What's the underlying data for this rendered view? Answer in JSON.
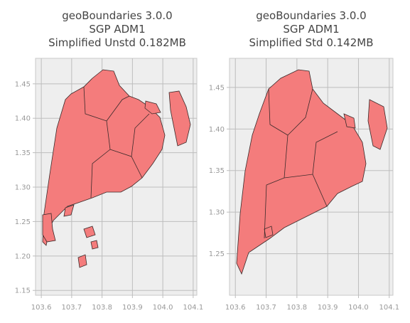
{
  "chart_data": [
    {
      "type": "map",
      "title": [
        "geoBoundaries 3.0.0",
        "SGP ADM1",
        "Simplified Unstd 0.182MB"
      ],
      "xlim": [
        103.581,
        104.112
      ],
      "ylim": [
        1.143,
        1.487
      ],
      "xticks": [
        103.6,
        103.7,
        103.8,
        103.9,
        {
          "value": 104.0,
          "label": "104.0"
        },
        104.1
      ],
      "yticks": [
        1.15,
        {
          "value": 1.2,
          "label": "1.20"
        },
        1.25,
        {
          "value": 1.3,
          "label": "1.30"
        },
        1.35,
        {
          "value": 1.4,
          "label": "1.40"
        },
        1.45
      ],
      "grid": true
    },
    {
      "type": "map",
      "title": [
        "geoBoundaries 3.0.0",
        "SGP ADM1",
        "Simplified Std 0.142MB"
      ],
      "xlim": [
        103.581,
        104.112
      ],
      "ylim": [
        1.2,
        1.485
      ],
      "xticks": [
        103.6,
        103.7,
        103.8,
        103.9,
        {
          "value": 104.0,
          "label": "104.0"
        },
        104.1
      ],
      "yticks": [
        1.25,
        {
          "value": 1.3,
          "label": "1.30"
        },
        1.35,
        {
          "value": 1.4,
          "label": "1.40"
        },
        1.45
      ],
      "grid": true
    }
  ]
}
